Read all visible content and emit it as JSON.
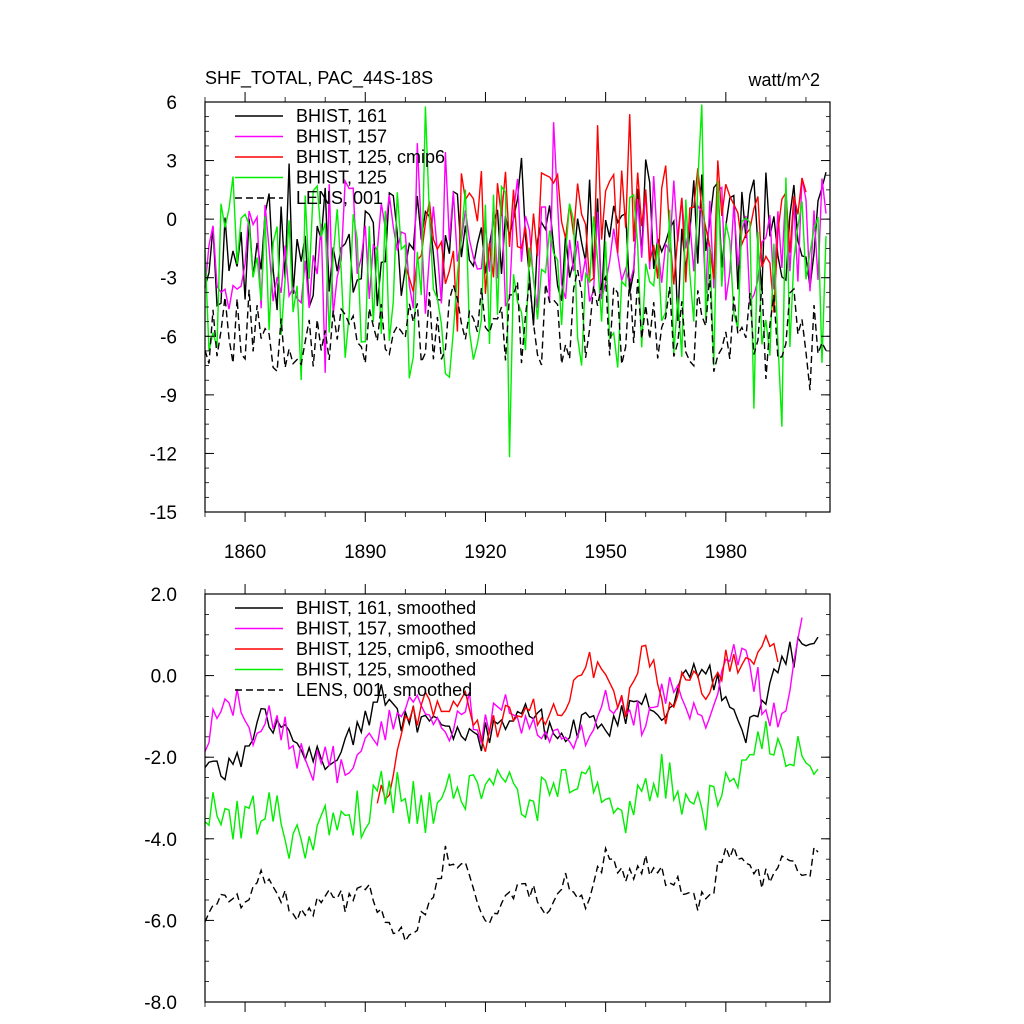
{
  "header": {
    "title": "SHF_TOTAL, PAC_44S-18S",
    "units": "watt/m^2"
  },
  "colors": {
    "black": "#000000",
    "magenta": "#ff00ff",
    "red": "#ff0000",
    "green": "#00ee00"
  },
  "chart_data": [
    {
      "type": "line",
      "title": "SHF_TOTAL, PAC_44S-18S",
      "ylabel": "watt/m^2",
      "xlim": [
        1850,
        2006
      ],
      "ylim": [
        -15,
        6
      ],
      "yticks": [
        6,
        3,
        0,
        -3,
        -6,
        -9,
        -12,
        -15
      ],
      "ytick_labels": [
        "6",
        "3",
        "0",
        "-3",
        "-6",
        "-9",
        "-12",
        "-15"
      ],
      "xticks": [
        1860,
        1890,
        1920,
        1950,
        1980
      ],
      "xtick_labels": [
        "1860",
        "1890",
        "1920",
        "1950",
        "1980"
      ],
      "legend": [
        "BHIST, 161",
        "BHIST, 157",
        "BHIST, 125, cmip6",
        "BHIST, 125",
        "LENS, 001"
      ],
      "legend_position": "top-left",
      "series": [
        {
          "name": "BHIST, 161",
          "color": "black",
          "dash": false,
          "x_start": 1850,
          "x_end": 2005,
          "kind": "raw",
          "mean": -1.8,
          "amp": 3.2,
          "trend": 1.2,
          "seed": 11,
          "step": 1,
          "clip": [
            -12.5,
            6
          ]
        },
        {
          "name": "BHIST, 157",
          "color": "magenta",
          "dash": false,
          "x_start": 1850,
          "x_end": 2005,
          "kind": "raw",
          "mean": -1.8,
          "amp": 3.4,
          "trend": 1.0,
          "seed": 23,
          "step": 1,
          "clip": [
            -12.5,
            6
          ]
        },
        {
          "name": "BHIST, 125, cmip6",
          "color": "red",
          "dash": false,
          "x_start": 1900,
          "x_end": 2000,
          "kind": "raw",
          "mean": -0.8,
          "amp": 3.2,
          "trend": 0.8,
          "seed": 37,
          "step": 1,
          "clip": [
            -12.5,
            6
          ]
        },
        {
          "name": "BHIST, 125",
          "color": "green",
          "dash": false,
          "x_start": 1850,
          "x_end": 2005,
          "kind": "raw",
          "mean": -3.6,
          "amp": 5.0,
          "trend": 0.8,
          "seed": 41,
          "step": 1,
          "clip": [
            -12.5,
            6
          ]
        },
        {
          "name": "LENS, 001",
          "color": "black",
          "dash": true,
          "x_start": 1850,
          "x_end": 2005,
          "kind": "raw",
          "mean": -5.6,
          "amp": 2.3,
          "trend": 0.6,
          "seed": 53,
          "step": 1,
          "clip": [
            -12.5,
            6
          ]
        }
      ]
    },
    {
      "type": "line",
      "title": "",
      "ylabel": "",
      "xlim": [
        1850,
        2006
      ],
      "ylim": [
        -8,
        2
      ],
      "yticks": [
        2,
        0,
        -2,
        -4,
        -6,
        -8
      ],
      "ytick_labels": [
        "2.0",
        "0.0",
        "-2.0",
        "-4.0",
        "-6.0",
        "-8.0"
      ],
      "xticks": [
        1860,
        1890,
        1920,
        1950,
        1980
      ],
      "xtick_labels": [],
      "legend": [
        "BHIST, 161, smoothed",
        "BHIST, 157, smoothed",
        "BHIST, 125, cmip6, smoothed",
        "BHIST, 125, smoothed",
        "LENS, 001, smoothed"
      ],
      "legend_position": "top-left",
      "series": [
        {
          "name": "BHIST, 161, smoothed",
          "color": "black",
          "dash": false,
          "kind": "anchored",
          "seed": 61,
          "jitter": 0.3,
          "step": 1,
          "anchors": [
            [
              1850,
              -2.2
            ],
            [
              1855,
              -2.3
            ],
            [
              1860,
              -1.8
            ],
            [
              1865,
              -1.0
            ],
            [
              1870,
              -1.4
            ],
            [
              1880,
              -2.2
            ],
            [
              1885,
              -1.7
            ],
            [
              1890,
              -1.2
            ],
            [
              1895,
              -0.4
            ],
            [
              1900,
              -1.2
            ],
            [
              1905,
              -1.0
            ],
            [
              1910,
              -1.4
            ],
            [
              1920,
              -1.5
            ],
            [
              1925,
              -1.2
            ],
            [
              1930,
              -0.7
            ],
            [
              1935,
              -1.2
            ],
            [
              1940,
              -1.6
            ],
            [
              1945,
              -1.0
            ],
            [
              1950,
              -1.4
            ],
            [
              1955,
              -0.8
            ],
            [
              1960,
              -0.8
            ],
            [
              1965,
              -1.1
            ],
            [
              1970,
              0.1
            ],
            [
              1975,
              0.1
            ],
            [
              1980,
              -0.4
            ],
            [
              1985,
              -1.4
            ],
            [
              1990,
              -0.6
            ],
            [
              1995,
              0.5
            ],
            [
              2000,
              0.7
            ],
            [
              2003,
              0.8
            ]
          ]
        },
        {
          "name": "BHIST, 157, smoothed",
          "color": "magenta",
          "dash": false,
          "kind": "anchored",
          "seed": 67,
          "jitter": 0.35,
          "step": 1,
          "anchors": [
            [
              1850,
              -1.8
            ],
            [
              1853,
              -0.7
            ],
            [
              1858,
              -0.5
            ],
            [
              1862,
              -1.5
            ],
            [
              1868,
              -1.0
            ],
            [
              1875,
              -2.2
            ],
            [
              1880,
              -2.0
            ],
            [
              1885,
              -2.3
            ],
            [
              1890,
              -1.5
            ],
            [
              1895,
              -1.2
            ],
            [
              1900,
              -0.6
            ],
            [
              1905,
              -0.6
            ],
            [
              1910,
              -1.5
            ],
            [
              1915,
              -0.7
            ],
            [
              1920,
              -1.4
            ],
            [
              1925,
              -0.6
            ],
            [
              1930,
              -1.4
            ],
            [
              1935,
              -1.4
            ],
            [
              1940,
              -1.8
            ],
            [
              1945,
              -1.6
            ],
            [
              1950,
              -0.6
            ],
            [
              1955,
              -1.0
            ],
            [
              1960,
              -1.1
            ],
            [
              1965,
              -0.4
            ],
            [
              1970,
              -0.6
            ],
            [
              1975,
              -1.1
            ],
            [
              1980,
              0.2
            ],
            [
              1985,
              0.6
            ],
            [
              1990,
              -0.8
            ],
            [
              1995,
              -0.9
            ],
            [
              1999,
              1.3
            ]
          ]
        },
        {
          "name": "BHIST, 125, cmip6, smoothed",
          "color": "red",
          "dash": false,
          "kind": "anchored",
          "seed": 71,
          "jitter": 0.3,
          "step": 1,
          "anchors": [
            [
              1893,
              -2.9
            ],
            [
              1896,
              -2.9
            ],
            [
              1900,
              -1.2
            ],
            [
              1905,
              -0.6
            ],
            [
              1910,
              -0.9
            ],
            [
              1915,
              -0.6
            ],
            [
              1920,
              -1.7
            ],
            [
              1925,
              -0.8
            ],
            [
              1930,
              -0.9
            ],
            [
              1935,
              -1.0
            ],
            [
              1940,
              -0.7
            ],
            [
              1945,
              0.3
            ],
            [
              1950,
              -0.1
            ],
            [
              1955,
              -0.7
            ],
            [
              1960,
              0.9
            ],
            [
              1965,
              -1.0
            ],
            [
              1970,
              0.1
            ],
            [
              1975,
              -0.4
            ],
            [
              1980,
              0.3
            ],
            [
              1985,
              0.5
            ],
            [
              1990,
              0.7
            ],
            [
              1993,
              0.6
            ]
          ]
        },
        {
          "name": "BHIST, 125, smoothed",
          "color": "green",
          "dash": false,
          "kind": "anchored",
          "seed": 79,
          "jitter": 0.5,
          "step": 1,
          "anchors": [
            [
              1850,
              -3.5
            ],
            [
              1855,
              -3.3
            ],
            [
              1860,
              -3.5
            ],
            [
              1865,
              -3.2
            ],
            [
              1870,
              -3.8
            ],
            [
              1875,
              -4.0
            ],
            [
              1880,
              -3.6
            ],
            [
              1885,
              -3.3
            ],
            [
              1890,
              -3.5
            ],
            [
              1895,
              -2.6
            ],
            [
              1900,
              -3.0
            ],
            [
              1905,
              -3.3
            ],
            [
              1910,
              -2.7
            ],
            [
              1915,
              -2.9
            ],
            [
              1920,
              -2.4
            ],
            [
              1925,
              -2.6
            ],
            [
              1930,
              -3.2
            ],
            [
              1935,
              -2.9
            ],
            [
              1940,
              -2.6
            ],
            [
              1945,
              -2.6
            ],
            [
              1950,
              -2.9
            ],
            [
              1955,
              -3.3
            ],
            [
              1960,
              -2.8
            ],
            [
              1965,
              -2.5
            ],
            [
              1970,
              -3.0
            ],
            [
              1975,
              -3.2
            ],
            [
              1980,
              -2.6
            ],
            [
              1985,
              -2.0
            ],
            [
              1990,
              -1.3
            ],
            [
              1995,
              -2.1
            ],
            [
              2003,
              -2.1
            ]
          ]
        },
        {
          "name": "LENS, 001, smoothed",
          "color": "black",
          "dash": true,
          "kind": "anchored",
          "seed": 83,
          "jitter": 0.22,
          "step": 1,
          "anchors": [
            [
              1850,
              -6.0
            ],
            [
              1855,
              -5.4
            ],
            [
              1860,
              -5.6
            ],
            [
              1865,
              -4.9
            ],
            [
              1870,
              -5.5
            ],
            [
              1875,
              -6.0
            ],
            [
              1880,
              -5.3
            ],
            [
              1885,
              -5.6
            ],
            [
              1890,
              -5.1
            ],
            [
              1895,
              -5.8
            ],
            [
              1900,
              -6.4
            ],
            [
              1905,
              -5.9
            ],
            [
              1910,
              -4.4
            ],
            [
              1915,
              -4.7
            ],
            [
              1920,
              -6.2
            ],
            [
              1925,
              -5.5
            ],
            [
              1930,
              -5.0
            ],
            [
              1935,
              -5.9
            ],
            [
              1940,
              -5.1
            ],
            [
              1945,
              -5.7
            ],
            [
              1950,
              -4.4
            ],
            [
              1955,
              -5.0
            ],
            [
              1960,
              -4.6
            ],
            [
              1965,
              -4.9
            ],
            [
              1970,
              -5.3
            ],
            [
              1975,
              -5.6
            ],
            [
              1980,
              -4.3
            ],
            [
              1985,
              -4.7
            ],
            [
              1990,
              -5.0
            ],
            [
              1995,
              -4.4
            ],
            [
              2000,
              -4.9
            ],
            [
              2003,
              -4.2
            ]
          ]
        }
      ]
    }
  ]
}
